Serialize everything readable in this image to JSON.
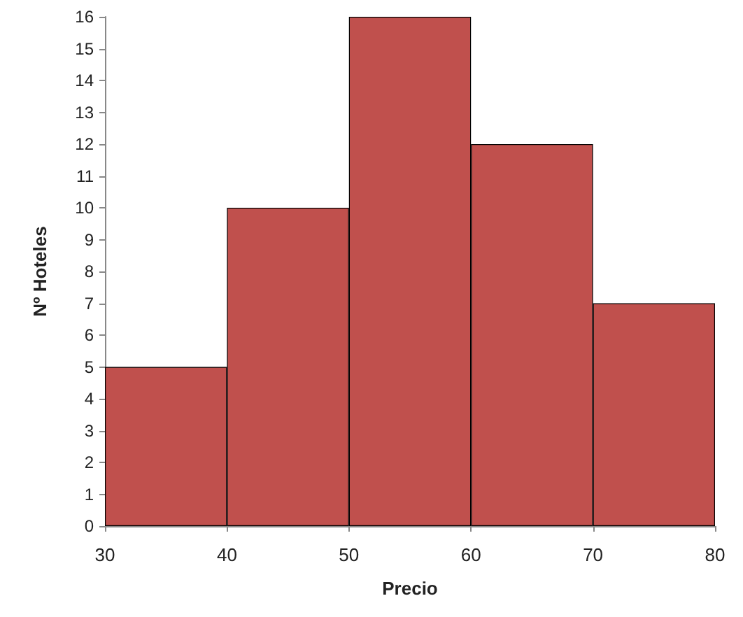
{
  "chart_data": {
    "type": "histogram",
    "xlabel": "Precio",
    "ylabel": "Nº Hoteles",
    "bins": [
      30,
      40,
      50,
      60,
      70,
      80
    ],
    "values": [
      5,
      10,
      16,
      12,
      7
    ],
    "color": "#c0504d",
    "xlim": [
      30,
      80
    ],
    "xticks": [
      30,
      40,
      50,
      60,
      70,
      80
    ],
    "ylim": [
      0,
      16
    ],
    "yticks": [
      0,
      1,
      2,
      3,
      4,
      5,
      6,
      7,
      8,
      9,
      10,
      11,
      12,
      13,
      14,
      15,
      16
    ],
    "grid": false
  }
}
